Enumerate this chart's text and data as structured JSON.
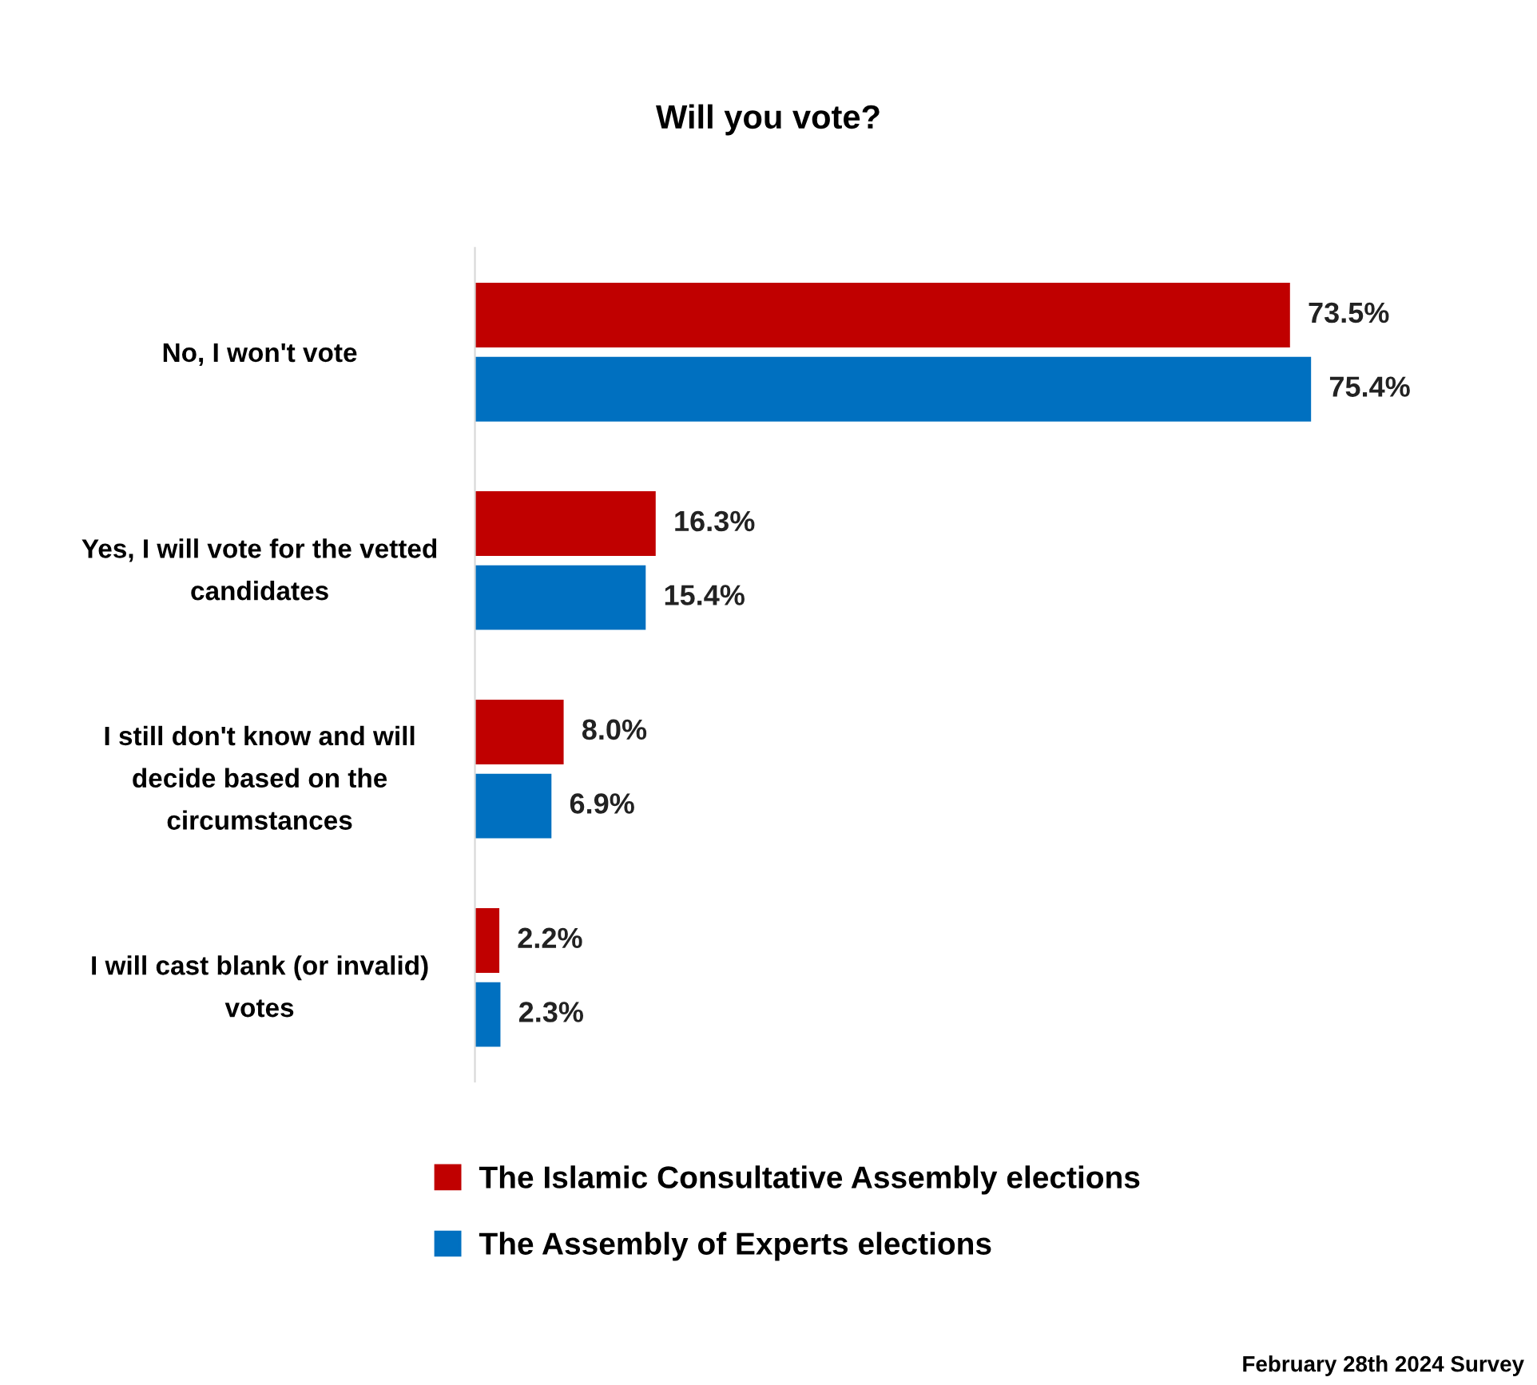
{
  "chart_data": {
    "type": "bar",
    "orientation": "horizontal",
    "title": "Will you vote?",
    "categories": [
      "No, I won't vote",
      "Yes, I will vote for the vetted candidates",
      "I still don't know and will decide based on the circumstances",
      "I will cast blank (or invalid) votes"
    ],
    "series": [
      {
        "name": "The Islamic Consultative Assembly elections",
        "color": "#c00000",
        "values": [
          73.5,
          16.3,
          8.0,
          2.2
        ],
        "value_labels": [
          "73.5%",
          "16.3%",
          "8.0%",
          "2.2%"
        ]
      },
      {
        "name": "The Assembly of Experts elections",
        "color": "#0070c0",
        "values": [
          75.4,
          15.4,
          6.9,
          2.3
        ],
        "value_labels": [
          "75.4%",
          "15.4%",
          "6.9%",
          "2.3%"
        ]
      }
    ],
    "legend": "bottom",
    "grid": false,
    "annotations": [
      "February 28th 2024 Survey"
    ]
  }
}
